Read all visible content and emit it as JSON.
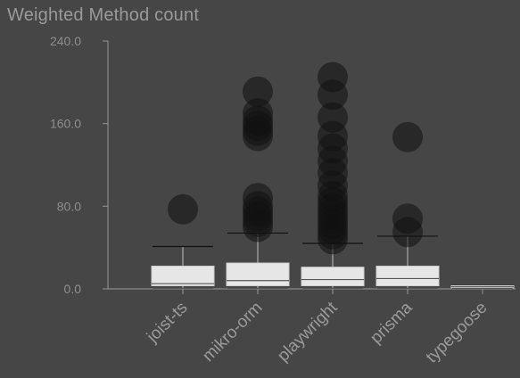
{
  "chart_data": {
    "type": "box",
    "title": "Weighted Method count",
    "xlabel": "",
    "ylabel": "",
    "ylim": [
      0,
      240
    ],
    "y_ticks": [
      0,
      80,
      160,
      240
    ],
    "y_tick_labels": [
      "0.0",
      "80.0",
      "160.0",
      "240.0"
    ],
    "grid": false,
    "legend": "none",
    "categories": [
      "joist-ts",
      "mikro-orm",
      "playwright",
      "prisma",
      "typegoose"
    ],
    "boxes": [
      {
        "name": "joist-ts",
        "whisker_low": 0,
        "q1": 3,
        "median": 5,
        "q3": 22,
        "whisker_high": 41,
        "outliers": [
          77
        ]
      },
      {
        "name": "mikro-orm",
        "whisker_low": 0,
        "q1": 3,
        "median": 8,
        "q3": 25,
        "whisker_high": 54,
        "outliers": [
          60,
          65,
          70,
          75,
          80,
          88,
          148,
          153,
          158,
          163,
          170,
          191
        ]
      },
      {
        "name": "playwright",
        "whisker_low": 0,
        "q1": 3,
        "median": 9,
        "q3": 21,
        "whisker_high": 44,
        "outliers": [
          48,
          53,
          58,
          63,
          68,
          73,
          78,
          84,
          90,
          100,
          112,
          124,
          136,
          148,
          166,
          188,
          205
        ]
      },
      {
        "name": "prisma",
        "whisker_low": 0,
        "q1": 3,
        "median": 10,
        "q3": 22,
        "whisker_high": 51,
        "outliers": [
          55,
          68,
          147
        ]
      },
      {
        "name": "typegoose",
        "whisker_low": 0,
        "q1": 1,
        "median": 2,
        "q3": 3,
        "whisker_high": 3,
        "outliers": []
      }
    ],
    "colors": {
      "background": "#464646",
      "box_fill": "#e6e6e6",
      "outlier": "#111111",
      "axis": "#8a8a8a",
      "text": "#9a9a9a"
    }
  }
}
